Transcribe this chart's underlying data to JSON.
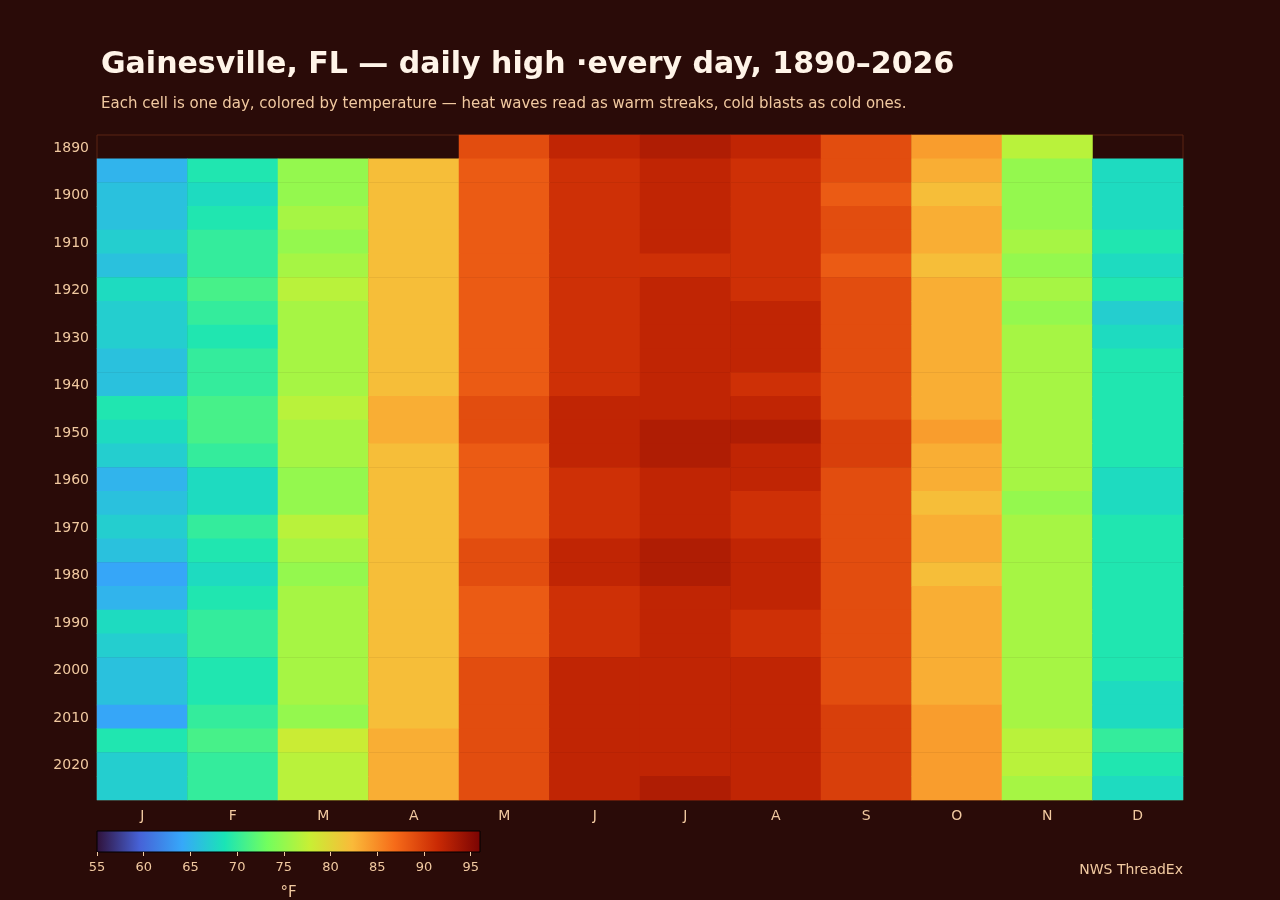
{
  "chart_data": {
    "type": "heatmap",
    "title": "Gainesville, FL — daily high ·every day, 1890–2026",
    "subtitle": "Each cell is one day, colored by temperature — heat waves read as warm streaks, cold blasts as cold ones.",
    "clabel": "°F",
    "annotations": [
      "NWS ThreadEx"
    ],
    "categories": [
      "J",
      "F",
      "M",
      "A",
      "M",
      "J",
      "J",
      "A",
      "S",
      "O",
      "N",
      "D"
    ],
    "y_categories": [
      "1890",
      null,
      "1900",
      null,
      "1910",
      null,
      "1920",
      null,
      "1930",
      null,
      "1940",
      null,
      "1950",
      null,
      "1960",
      null,
      "1970",
      null,
      "1980",
      null,
      "1990",
      null,
      "2000",
      null,
      "2010",
      null,
      "2020",
      null
    ],
    "cells": [
      [
        null,
        null,
        null,
        null,
        89,
        92,
        93,
        92,
        89,
        84,
        77,
        null
      ],
      [
        65,
        69,
        75,
        82,
        88,
        91,
        92,
        91,
        89,
        83,
        75,
        68
      ],
      [
        66,
        68,
        75,
        82,
        88,
        91,
        92,
        91,
        88,
        82,
        75,
        68
      ],
      [
        66,
        69,
        76,
        82,
        88,
        91,
        92,
        91,
        89,
        83,
        75,
        68
      ],
      [
        67,
        70,
        75,
        82,
        88,
        91,
        92,
        91,
        89,
        83,
        76,
        69
      ],
      [
        66,
        70,
        76,
        82,
        88,
        91,
        91,
        91,
        88,
        82,
        75,
        68
      ],
      [
        68,
        71,
        77,
        82,
        88,
        91,
        92,
        91,
        89,
        83,
        76,
        69
      ],
      [
        67,
        70,
        76,
        82,
        88,
        91,
        92,
        92,
        89,
        83,
        75,
        67
      ],
      [
        67,
        69,
        76,
        82,
        88,
        91,
        92,
        92,
        89,
        83,
        76,
        68
      ],
      [
        66,
        70,
        76,
        82,
        88,
        91,
        92,
        92,
        89,
        83,
        76,
        69
      ],
      [
        66,
        70,
        76,
        82,
        88,
        91,
        92,
        91,
        89,
        83,
        76,
        69
      ],
      [
        69,
        71,
        77,
        83,
        89,
        92,
        92,
        92,
        89,
        83,
        76,
        69
      ],
      [
        68,
        71,
        76,
        83,
        89,
        92,
        93,
        93,
        90,
        84,
        76,
        69
      ],
      [
        67,
        70,
        76,
        82,
        88,
        92,
        93,
        92,
        90,
        83,
        76,
        69
      ],
      [
        65,
        68,
        75,
        82,
        88,
        91,
        92,
        92,
        89,
        83,
        76,
        68
      ],
      [
        66,
        68,
        75,
        82,
        88,
        91,
        92,
        91,
        89,
        82,
        75,
        68
      ],
      [
        67,
        70,
        77,
        82,
        88,
        91,
        92,
        91,
        89,
        83,
        76,
        69
      ],
      [
        66,
        69,
        76,
        82,
        89,
        92,
        93,
        92,
        89,
        83,
        76,
        69
      ],
      [
        64,
        68,
        75,
        82,
        89,
        92,
        93,
        92,
        89,
        82,
        76,
        69
      ],
      [
        65,
        69,
        76,
        82,
        88,
        91,
        92,
        92,
        89,
        83,
        76,
        69
      ],
      [
        68,
        70,
        76,
        82,
        88,
        91,
        92,
        91,
        89,
        83,
        76,
        69
      ],
      [
        67,
        70,
        76,
        82,
        88,
        91,
        92,
        91,
        89,
        83,
        76,
        69
      ],
      [
        66,
        69,
        76,
        82,
        89,
        92,
        92,
        92,
        89,
        83,
        76,
        69
      ],
      [
        66,
        69,
        76,
        82,
        89,
        92,
        92,
        92,
        89,
        83,
        76,
        68
      ],
      [
        64,
        70,
        75,
        82,
        89,
        92,
        92,
        92,
        90,
        84,
        76,
        68
      ],
      [
        69,
        71,
        78,
        83,
        89,
        92,
        92,
        92,
        90,
        84,
        77,
        70
      ],
      [
        67,
        70,
        77,
        83,
        89,
        92,
        92,
        92,
        90,
        84,
        77,
        69
      ],
      [
        67,
        70,
        77,
        83,
        89,
        92,
        93,
        92,
        90,
        84,
        76,
        68
      ]
    ],
    "clim": [
      55,
      96
    ],
    "cticks": [
      55,
      60,
      65,
      70,
      75,
      80,
      85,
      90,
      95
    ]
  }
}
